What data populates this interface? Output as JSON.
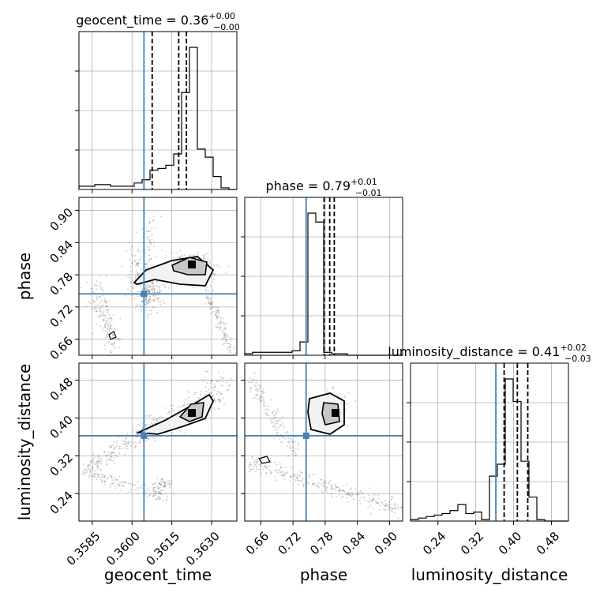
{
  "chart_data": {
    "type": "corner",
    "grid": true,
    "truth": {
      "geocent_time": 0.36045,
      "phase": 0.7445,
      "luminosity_distance": 0.3625
    },
    "truth_color": "#4682b4",
    "parameters": [
      {
        "name": "geocent_time",
        "label": "geocent_time",
        "range": [
          0.358,
          0.36395
        ],
        "ticks": [
          0.3585,
          0.36,
          0.3615,
          0.363
        ],
        "tick_labels": [
          "0.3585",
          "0.3600",
          "0.3615",
          "0.3630"
        ],
        "title_main": "geocent_time = 0.36",
        "title_sup": "+0.00",
        "title_sub": "−0.00",
        "quantiles": [
          0.36076,
          0.36176,
          0.36205
        ],
        "hist_values": [
          2,
          2,
          3,
          3,
          2,
          2,
          2,
          4,
          6,
          12,
          13,
          15,
          22,
          60,
          88,
          25,
          20,
          8,
          1,
          0
        ]
      },
      {
        "name": "phase",
        "label": "phase",
        "range": [
          0.63,
          0.9245
        ],
        "ticks": [
          0.66,
          0.72,
          0.78,
          0.84,
          0.9
        ],
        "tick_labels": [
          "0.66",
          "0.72",
          "0.78",
          "0.84",
          "0.90"
        ],
        "title_main": "phase = 0.79",
        "title_sup": "+0.01",
        "title_sub": "−0.01",
        "quantiles": [
          0.778,
          0.7885,
          0.797
        ],
        "hist_values": [
          1,
          2,
          2,
          2,
          2,
          2,
          3,
          9,
          96,
          90,
          2,
          1,
          1,
          0,
          0,
          0,
          0,
          0,
          0,
          0
        ]
      },
      {
        "name": "luminosity_distance",
        "label": "luminosity_distance",
        "range": [
          0.182,
          0.516
        ],
        "ticks": [
          0.24,
          0.32,
          0.4,
          0.48
        ],
        "tick_labels": [
          "0.24",
          "0.32",
          "0.40",
          "0.48"
        ],
        "title_main": "luminosity_distance = 0.41",
        "title_sup": "+0.02",
        "title_sub": "−0.03",
        "quantiles": [
          0.38,
          0.408,
          0.43
        ],
        "hist_values": [
          1,
          2,
          3,
          4,
          5,
          7,
          11,
          5,
          6,
          1,
          30,
          38,
          95,
          80,
          40,
          16,
          1,
          0,
          0,
          0
        ]
      }
    ]
  }
}
